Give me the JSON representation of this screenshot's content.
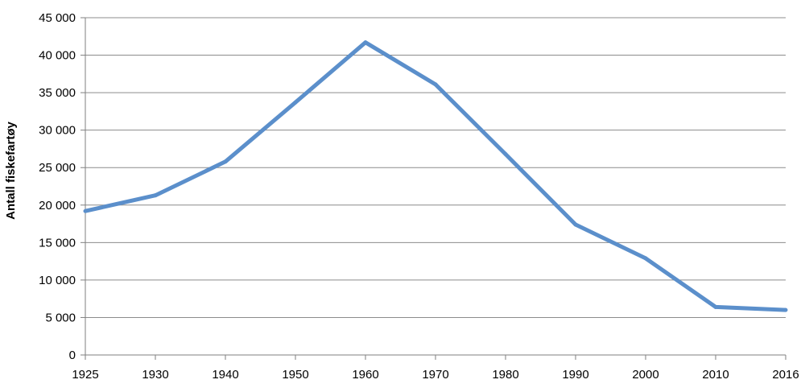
{
  "colors": {
    "line": "#5B8FCB",
    "grid": "#8C8C8C",
    "axis": "#7F7F7F",
    "text": "#000000"
  },
  "chart_data": {
    "type": "line",
    "title": "",
    "xlabel": "",
    "ylabel": "Antall fiskefartøy",
    "categories": [
      "1925",
      "1930",
      "1940",
      "1950",
      "1960",
      "1970",
      "1980",
      "1990",
      "2000",
      "2010",
      "2016"
    ],
    "series": [
      {
        "values": [
          19200,
          21300,
          25800,
          33700,
          41700,
          36100,
          26800,
          17400,
          12900,
          6400,
          6000
        ]
      }
    ],
    "ylim": [
      0,
      45000
    ],
    "yticks": [
      0,
      5000,
      10000,
      15000,
      20000,
      25000,
      30000,
      35000,
      40000,
      45000
    ],
    "ytick_labels": [
      "0",
      "5 000",
      "10 000",
      "15 000",
      "20 000",
      "25 000",
      "30 000",
      "35 000",
      "40 000",
      "45 000"
    ],
    "grid": true,
    "legend": "none"
  }
}
